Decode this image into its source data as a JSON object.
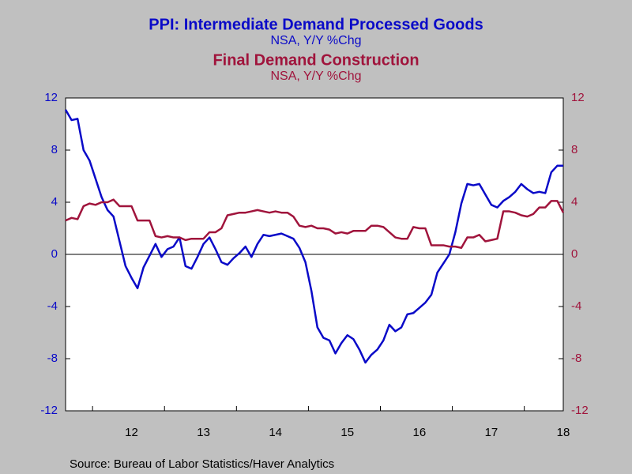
{
  "chart_data": {
    "type": "line",
    "series": [
      {
        "name": "PPI: Intermediate Demand Processed Goods",
        "subtitle": "NSA, Y/Y %Chg",
        "color": "#0a0ac8",
        "axis": "y",
        "values": [
          11.1,
          10.3,
          10.4,
          8.0,
          7.2,
          5.8,
          4.4,
          3.4,
          2.9,
          1.0,
          -0.9,
          -1.8,
          -2.6,
          -1.0,
          -0.1,
          0.8,
          -0.2,
          0.4,
          0.6,
          1.3,
          -0.9,
          -1.1,
          -0.2,
          0.8,
          1.3,
          0.4,
          -0.6,
          -0.8,
          -0.3,
          0.1,
          0.6,
          -0.2,
          0.8,
          1.5,
          1.4,
          1.5,
          1.6,
          1.4,
          1.2,
          0.5,
          -0.6,
          -2.8,
          -5.6,
          -6.4,
          -6.6,
          -7.6,
          -6.8,
          -6.2,
          -6.5,
          -7.3,
          -8.3,
          -7.7,
          -7.3,
          -6.6,
          -5.4,
          -5.9,
          -5.6,
          -4.6,
          -4.5,
          -4.1,
          -3.7,
          -3.1,
          -1.4,
          -0.7,
          0.0,
          1.7,
          3.9,
          5.4,
          5.3,
          5.4,
          4.6,
          3.8,
          3.6,
          4.1,
          4.4,
          4.8,
          5.4,
          5.0,
          4.7,
          4.8,
          4.7,
          6.3,
          6.8,
          6.8
        ]
      },
      {
        "name": "Final Demand Construction",
        "subtitle": "NSA, Y/Y %Chg",
        "color": "#a0143c",
        "axis": "y2",
        "values": [
          2.6,
          2.8,
          2.7,
          3.7,
          3.9,
          3.8,
          4.0,
          4.0,
          4.2,
          3.7,
          3.7,
          3.7,
          2.6,
          2.6,
          2.6,
          1.4,
          1.3,
          1.4,
          1.3,
          1.3,
          1.1,
          1.2,
          1.2,
          1.2,
          1.7,
          1.7,
          2.0,
          3.0,
          3.1,
          3.2,
          3.2,
          3.3,
          3.4,
          3.3,
          3.2,
          3.3,
          3.2,
          3.2,
          2.9,
          2.2,
          2.1,
          2.2,
          2.0,
          2.0,
          1.9,
          1.6,
          1.7,
          1.6,
          1.8,
          1.8,
          1.8,
          2.2,
          2.2,
          2.1,
          1.7,
          1.3,
          1.2,
          1.2,
          2.1,
          2.0,
          2.0,
          0.7,
          0.7,
          0.7,
          0.6,
          0.6,
          0.5,
          1.3,
          1.3,
          1.5,
          1.0,
          1.1,
          1.2,
          3.3,
          3.3,
          3.2,
          3.0,
          2.9,
          3.1,
          3.6,
          3.6,
          4.1,
          4.1,
          3.2
        ]
      }
    ],
    "categories": [
      null,
      null,
      null,
      null,
      null,
      null,
      null,
      null,
      null,
      null,
      null,
      "12",
      null,
      null,
      null,
      null,
      null,
      null,
      null,
      null,
      null,
      null,
      null,
      "13",
      null,
      null,
      null,
      null,
      null,
      null,
      null,
      null,
      null,
      null,
      null,
      "14",
      null,
      null,
      null,
      null,
      null,
      null,
      null,
      null,
      null,
      null,
      null,
      "15",
      null,
      null,
      null,
      null,
      null,
      null,
      null,
      null,
      null,
      null,
      null,
      "16",
      null,
      null,
      null,
      null,
      null,
      null,
      null,
      null,
      null,
      null,
      null,
      "17",
      null,
      null,
      null,
      null,
      null,
      null,
      null,
      null,
      null,
      null,
      null,
      "18"
    ],
    "ylim": [
      -12,
      12
    ],
    "yticks": [
      -12,
      -8,
      -4,
      0,
      4,
      8,
      12
    ],
    "y2lim": [
      -12,
      12
    ],
    "y2ticks": [
      -12,
      -8,
      -4,
      0,
      4,
      8,
      12
    ],
    "source": "Source:  Bureau of Labor Statistics/Haver Analytics"
  }
}
